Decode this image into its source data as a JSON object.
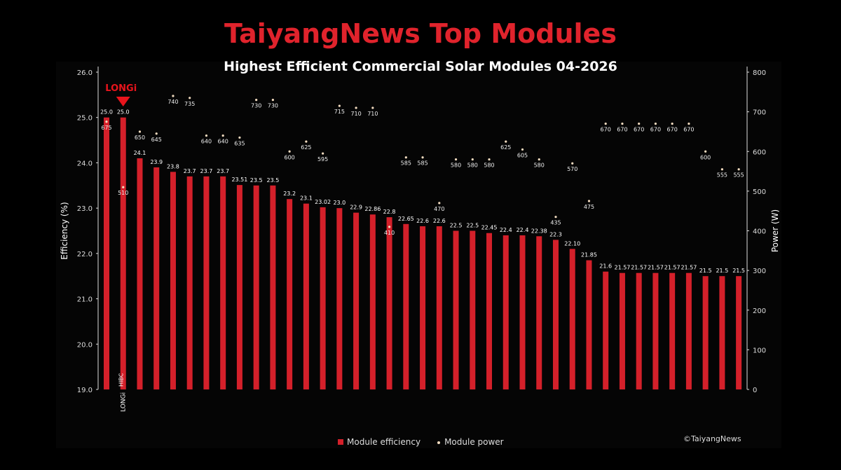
{
  "chart_data": {
    "type": "bar",
    "title": "TaiyangNews Top Modules",
    "subtitle": "Highest Efficient Commercial Solar Modules 04-2026",
    "ylabel": "Efficiency (%)",
    "y2label": "Power (W)",
    "ylim": [
      19.0,
      26.0
    ],
    "y2lim": [
      0,
      800
    ],
    "yticks": [
      "19.0",
      "20.0",
      "21.0",
      "22.0",
      "23.0",
      "24.0",
      "25.0",
      "26.0"
    ],
    "y2ticks": [
      "0",
      "100",
      "200",
      "300",
      "400",
      "500",
      "600",
      "700",
      "800"
    ],
    "highlight": {
      "brand": "LONGi",
      "index": 1,
      "xlabel": "LONGi HIBC"
    },
    "efficiency_labels": [
      "25.0",
      "25.0",
      "24.1",
      "23.9",
      "23.8",
      "23.7",
      "23.7",
      "23.7",
      "23.51",
      "23.5",
      "23.5",
      "23.2",
      "23.1",
      "23.02",
      "23.0",
      "22.9",
      "22.86",
      "22.8",
      "22.65",
      "22.6",
      "22.6",
      "22.5",
      "22.5",
      "22.45",
      "22.4",
      "22.4",
      "22.38",
      "22.3",
      "22.10",
      "21.85",
      "21.6",
      "21.57",
      "21.57",
      "21.57",
      "21.57",
      "21.57",
      "21.5",
      "21.5",
      "21.5"
    ],
    "series": [
      {
        "name": "Module efficiency",
        "type": "bar",
        "axis": "left",
        "color": "#d4202a",
        "values": [
          25.0,
          25.0,
          24.1,
          23.9,
          23.8,
          23.7,
          23.7,
          23.7,
          23.51,
          23.5,
          23.5,
          23.2,
          23.1,
          23.02,
          23.0,
          22.9,
          22.86,
          22.8,
          22.65,
          22.6,
          22.6,
          22.5,
          22.5,
          22.45,
          22.4,
          22.4,
          22.38,
          22.3,
          22.1,
          21.85,
          21.6,
          21.57,
          21.57,
          21.57,
          21.57,
          21.57,
          21.5,
          21.5,
          21.5
        ]
      },
      {
        "name": "Module power",
        "type": "scatter",
        "axis": "right",
        "color": "#f3dcc0",
        "values": [
          675,
          510,
          650,
          645,
          740,
          735,
          640,
          640,
          635,
          730,
          730,
          600,
          625,
          595,
          715,
          710,
          710,
          410,
          585,
          585,
          470,
          580,
          580,
          580,
          625,
          605,
          580,
          435,
          570,
          475,
          670,
          670,
          670,
          670,
          670,
          670,
          600,
          555,
          555
        ]
      }
    ],
    "legend": "bottom-center",
    "grid": false
  },
  "copyright": "©TaiyangNews",
  "colors": {
    "title": "#e0232c",
    "bar": "#d4202a",
    "dot": "#f3dcc0"
  }
}
